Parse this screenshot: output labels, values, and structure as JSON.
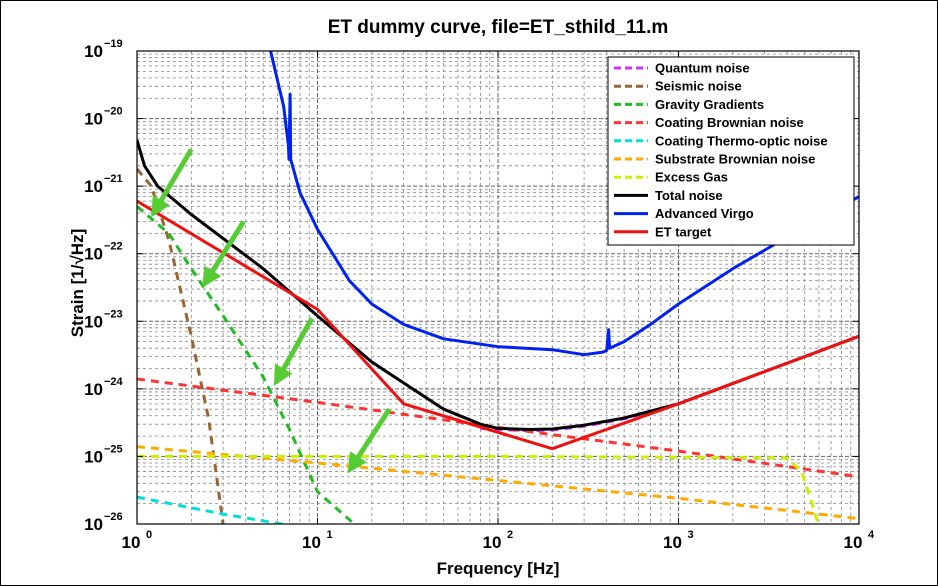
{
  "chart_data": {
    "type": "line",
    "title": "ET dummy curve, file=ET_sthild_11.m",
    "xlabel": "Frequency [Hz]",
    "ylabel": "Strain [1/√Hz]",
    "xscale": "log",
    "yscale": "log",
    "xlim": [
      1,
      10000
    ],
    "ylim": [
      1e-26,
      1e-19
    ],
    "x_ticks": [
      {
        "base": "10",
        "exp": "0",
        "value": 1
      },
      {
        "base": "10",
        "exp": "1",
        "value": 10
      },
      {
        "base": "10",
        "exp": "2",
        "value": 100
      },
      {
        "base": "10",
        "exp": "3",
        "value": 1000
      },
      {
        "base": "10",
        "exp": "4",
        "value": 10000
      }
    ],
    "y_ticks": [
      {
        "base": "10",
        "exp": "−26",
        "value": 1e-26
      },
      {
        "base": "10",
        "exp": "−25",
        "value": 1e-25
      },
      {
        "base": "10",
        "exp": "−24",
        "value": 1e-24
      },
      {
        "base": "10",
        "exp": "−23",
        "value": 1e-23
      },
      {
        "base": "10",
        "exp": "−22",
        "value": 1e-22
      },
      {
        "base": "10",
        "exp": "−21",
        "value": 1e-21
      },
      {
        "base": "10",
        "exp": "−20",
        "value": 1e-20
      },
      {
        "base": "10",
        "exp": "−19",
        "value": 1e-19
      }
    ],
    "grid": true,
    "legend_position": "top-right",
    "series": [
      {
        "name": "Quantum noise",
        "color": "#cc33ff",
        "dash": true,
        "points": [
          [
            80,
            2.6e-25
          ],
          [
            100,
            2.5e-25
          ],
          [
            150,
            2.4e-25
          ],
          [
            200,
            2.45e-25
          ],
          [
            300,
            2.8e-25
          ],
          [
            500,
            3.6e-25
          ],
          [
            1000,
            6e-25
          ],
          [
            3000,
            1.8e-24
          ],
          [
            10000,
            6e-24
          ]
        ]
      },
      {
        "name": "Seismic noise",
        "color": "#996633",
        "dash": true,
        "points": [
          [
            1,
            1.8e-21
          ],
          [
            1.2,
            1e-21
          ],
          [
            1.5,
            1.6e-22
          ],
          [
            2,
            6e-24
          ],
          [
            2.5,
            3.5e-25
          ],
          [
            3,
            1e-26
          ]
        ]
      },
      {
        "name": "Gravity Gradients",
        "color": "#22bb22",
        "dash": true,
        "points": [
          [
            1,
            5e-22
          ],
          [
            1.5,
            2e-22
          ],
          [
            2,
            6e-23
          ],
          [
            3,
            1.2e-23
          ],
          [
            5,
            1.5e-24
          ],
          [
            7,
            2.5e-25
          ],
          [
            10,
            3e-26
          ],
          [
            16,
            1e-26
          ]
        ]
      },
      {
        "name": "Coating Brownian noise",
        "color": "#ff3333",
        "dash": true,
        "points": [
          [
            1,
            1.4e-24
          ],
          [
            10,
            6.3e-25
          ],
          [
            100,
            2.7e-25
          ],
          [
            200,
            2.1e-25
          ],
          [
            1000,
            1.2e-25
          ],
          [
            10000,
            5e-26
          ]
        ]
      },
      {
        "name": "Coating Thermo-optic noise",
        "color": "#00dddd",
        "dash": true,
        "points": [
          [
            1,
            2.5e-26
          ],
          [
            3,
            1.4e-26
          ],
          [
            8,
            9e-27
          ]
        ]
      },
      {
        "name": "Substrate Brownian noise",
        "color": "#ffaa00",
        "dash": true,
        "points": [
          [
            1,
            1.4e-25
          ],
          [
            10,
            8e-26
          ],
          [
            100,
            4.4e-26
          ],
          [
            1000,
            2.4e-26
          ],
          [
            10000,
            1.2e-26
          ]
        ]
      },
      {
        "name": "Excess Gas",
        "color": "#ccee00",
        "dash": true,
        "points": [
          [
            1,
            1e-25
          ],
          [
            100,
            1e-25
          ],
          [
            4000,
            9.5e-26
          ],
          [
            4800,
            6e-26
          ],
          [
            5500,
            2e-26
          ],
          [
            6000,
            9e-27
          ]
        ]
      },
      {
        "name": "Total noise",
        "color": "#000000",
        "dash": false,
        "points": [
          [
            1,
            4.8e-21
          ],
          [
            1.1,
            2e-21
          ],
          [
            1.3,
            1e-21
          ],
          [
            2,
            3.8e-22
          ],
          [
            5,
            6e-23
          ],
          [
            10,
            1.2e-23
          ],
          [
            20,
            2.5e-24
          ],
          [
            50,
            5e-25
          ],
          [
            80,
            3e-25
          ],
          [
            100,
            2.6e-25
          ],
          [
            150,
            2.5e-25
          ],
          [
            200,
            2.55e-25
          ],
          [
            300,
            2.9e-25
          ],
          [
            500,
            3.7e-25
          ],
          [
            1000,
            6e-25
          ],
          [
            3000,
            1.8e-24
          ],
          [
            10000,
            6e-24
          ]
        ]
      },
      {
        "name": "Advanced Virgo",
        "color": "#0022ee",
        "dash": false,
        "points": [
          [
            5.5,
            1e-19
          ],
          [
            6.5,
            1.5e-20
          ],
          [
            6.9,
            4e-21
          ],
          [
            6.95,
            2.5e-21
          ],
          [
            7.05,
            2.3e-20
          ],
          [
            7.1,
            2.5e-21
          ],
          [
            8,
            8e-22
          ],
          [
            10,
            2.3e-22
          ],
          [
            15,
            4e-23
          ],
          [
            20,
            1.8e-23
          ],
          [
            30,
            9e-24
          ],
          [
            50,
            5.5e-24
          ],
          [
            100,
            4.2e-24
          ],
          [
            200,
            3.8e-24
          ],
          [
            300,
            3.2e-24
          ],
          [
            380,
            3.5e-24
          ],
          [
            400,
            3.7e-24
          ],
          [
            410,
            7.5e-24
          ],
          [
            415,
            4e-24
          ],
          [
            500,
            5e-24
          ],
          [
            700,
            9e-24
          ],
          [
            1000,
            1.8e-23
          ],
          [
            2000,
            6e-23
          ],
          [
            5000,
            2.5e-22
          ],
          [
            10000,
            7e-22
          ]
        ]
      },
      {
        "name": "ET target",
        "color": "#ee1111",
        "dash": false,
        "points": [
          [
            1,
            6e-22
          ],
          [
            10,
            1.5e-23
          ],
          [
            30,
            6e-25
          ],
          [
            200,
            1.3e-25
          ],
          [
            1000,
            6e-25
          ],
          [
            10000,
            6e-24
          ]
        ]
      }
    ],
    "annotations": [
      {
        "type": "arrow",
        "color": "#55cc33",
        "from": [
          2.0,
          3.5e-21
        ],
        "to": [
          1.3,
          5e-22
        ]
      },
      {
        "type": "arrow",
        "color": "#55cc33",
        "from": [
          3.9,
          3e-22
        ],
        "to": [
          2.5,
          4.5e-23
        ]
      },
      {
        "type": "arrow",
        "color": "#55cc33",
        "from": [
          9.3,
          1.1e-23
        ],
        "to": [
          6.2,
          1.6e-24
        ]
      },
      {
        "type": "arrow",
        "color": "#55cc33",
        "from": [
          25,
          5e-25
        ],
        "to": [
          16,
          8e-26
        ]
      }
    ]
  }
}
